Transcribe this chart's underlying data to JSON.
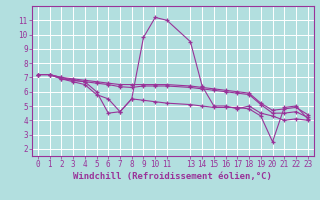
{
  "xlabel": "Windchill (Refroidissement éolien,°C)",
  "background_color": "#b2dfdf",
  "grid_color": "#ffffff",
  "line_color": "#993399",
  "xlim": [
    -0.5,
    23.5
  ],
  "ylim": [
    1.5,
    12.0
  ],
  "yticks": [
    2,
    3,
    4,
    5,
    6,
    7,
    8,
    9,
    10,
    11
  ],
  "xtick_positions": [
    0,
    1,
    2,
    3,
    4,
    5,
    6,
    7,
    8,
    9,
    10,
    11,
    13,
    14,
    15,
    16,
    17,
    18,
    19,
    20,
    21,
    22,
    23
  ],
  "xtick_labels": [
    "0",
    "1",
    "2",
    "3",
    "4",
    "5",
    "6",
    "7",
    "8",
    "9",
    "10",
    "11",
    "13",
    "14",
    "15",
    "16",
    "17",
    "18",
    "19",
    "20",
    "21",
    "22",
    "23"
  ],
  "lines": [
    {
      "x": [
        0,
        1,
        2,
        3,
        4,
        5,
        6,
        7,
        8,
        9,
        10,
        11,
        13,
        14,
        15,
        16,
        17,
        18,
        19,
        20,
        21,
        22,
        23
      ],
      "y": [
        7.2,
        7.2,
        7.0,
        6.8,
        6.7,
        6.0,
        4.5,
        4.6,
        5.5,
        9.8,
        11.2,
        11.0,
        9.5,
        6.4,
        5.0,
        5.0,
        4.8,
        5.0,
        4.5,
        4.3,
        4.0,
        4.1,
        4.0
      ]
    },
    {
      "x": [
        0,
        1,
        2,
        3,
        4,
        5,
        6,
        7,
        8,
        9,
        10,
        11,
        13,
        14,
        15,
        16,
        17,
        18,
        19,
        20,
        21,
        22,
        23
      ],
      "y": [
        7.2,
        7.2,
        6.9,
        6.7,
        6.5,
        5.8,
        5.5,
        4.6,
        5.5,
        5.4,
        5.3,
        5.2,
        5.1,
        5.0,
        4.9,
        4.9,
        4.9,
        4.8,
        4.3,
        2.5,
        4.9,
        5.0,
        4.1
      ]
    },
    {
      "x": [
        0,
        1,
        2,
        3,
        4,
        5,
        6,
        7,
        8,
        9,
        10,
        11,
        13,
        14,
        15,
        16,
        17,
        18,
        19,
        20,
        21,
        22,
        23
      ],
      "y": [
        7.2,
        7.2,
        6.9,
        6.8,
        6.7,
        6.6,
        6.5,
        6.35,
        6.3,
        6.4,
        6.4,
        6.4,
        6.3,
        6.2,
        6.1,
        6.0,
        5.9,
        5.8,
        5.1,
        4.5,
        4.5,
        4.6,
        4.2
      ]
    },
    {
      "x": [
        0,
        1,
        2,
        3,
        4,
        5,
        6,
        7,
        8,
        9,
        10,
        11,
        13,
        14,
        15,
        16,
        17,
        18,
        19,
        20,
        21,
        22,
        23
      ],
      "y": [
        7.2,
        7.2,
        7.0,
        6.9,
        6.8,
        6.7,
        6.6,
        6.5,
        6.5,
        6.5,
        6.5,
        6.5,
        6.4,
        6.3,
        6.2,
        6.1,
        6.0,
        5.9,
        5.2,
        4.7,
        4.8,
        4.9,
        4.4
      ]
    }
  ],
  "font_family": "monospace",
  "tick_fontsize": 5.5,
  "label_fontsize": 6.5
}
